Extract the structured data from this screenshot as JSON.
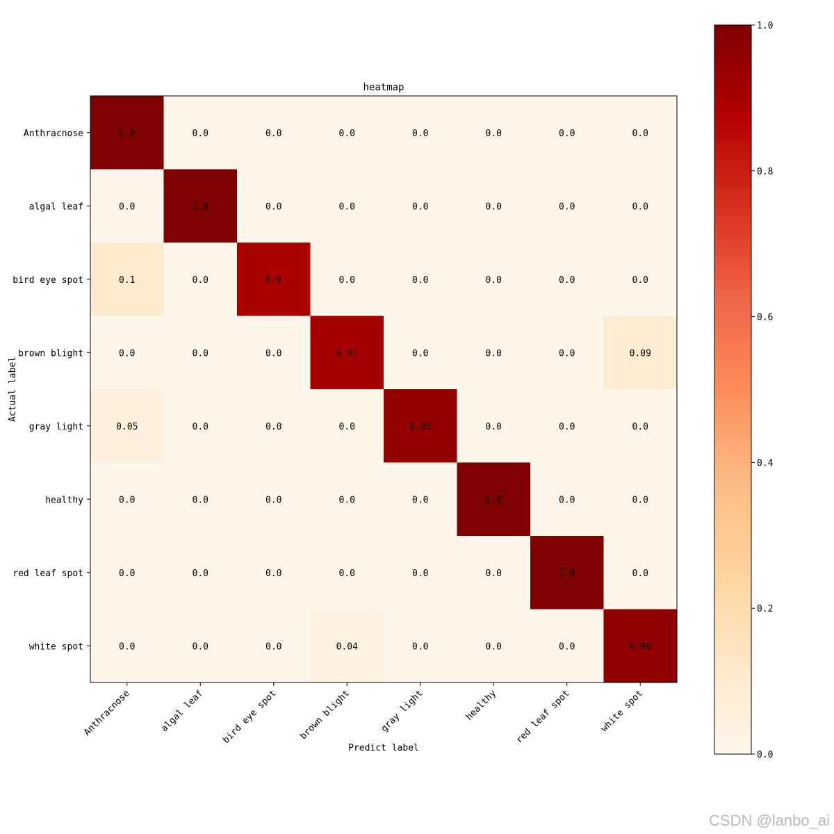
{
  "chart_data": {
    "type": "heatmap",
    "title": "heatmap",
    "xlabel": "Predict label",
    "ylabel": "Actual label",
    "categories": [
      "Anthracnose",
      "algal leaf",
      "bird eye spot",
      "brown blight",
      "gray light",
      "healthy",
      "red leaf spot",
      "white spot"
    ],
    "values": [
      [
        1.0,
        0.0,
        0.0,
        0.0,
        0.0,
        0.0,
        0.0,
        0.0
      ],
      [
        0.0,
        1.0,
        0.0,
        0.0,
        0.0,
        0.0,
        0.0,
        0.0
      ],
      [
        0.1,
        0.0,
        0.9,
        0.0,
        0.0,
        0.0,
        0.0,
        0.0
      ],
      [
        0.0,
        0.0,
        0.0,
        0.91,
        0.0,
        0.0,
        0.0,
        0.09
      ],
      [
        0.05,
        0.0,
        0.0,
        0.0,
        0.95,
        0.0,
        0.0,
        0.0
      ],
      [
        0.0,
        0.0,
        0.0,
        0.0,
        0.0,
        1.0,
        0.0,
        0.0
      ],
      [
        0.0,
        0.0,
        0.0,
        0.0,
        0.0,
        0.0,
        1.0,
        0.0
      ],
      [
        0.0,
        0.0,
        0.0,
        0.04,
        0.0,
        0.0,
        0.0,
        0.96
      ]
    ],
    "labels": [
      [
        "1.0",
        "0.0",
        "0.0",
        "0.0",
        "0.0",
        "0.0",
        "0.0",
        "0.0"
      ],
      [
        "0.0",
        "1.0",
        "0.0",
        "0.0",
        "0.0",
        "0.0",
        "0.0",
        "0.0"
      ],
      [
        "0.1",
        "0.0",
        "0.9",
        "0.0",
        "0.0",
        "0.0",
        "0.0",
        "0.0"
      ],
      [
        "0.0",
        "0.0",
        "0.0",
        "0.91",
        "0.0",
        "0.0",
        "0.0",
        "0.09"
      ],
      [
        "0.05",
        "0.0",
        "0.0",
        "0.0",
        "0.95",
        "0.0",
        "0.0",
        "0.0"
      ],
      [
        "0.0",
        "0.0",
        "0.0",
        "0.0",
        "0.0",
        "1.0",
        "0.0",
        "0.0"
      ],
      [
        "0.0",
        "0.0",
        "0.0",
        "0.0",
        "0.0",
        "0.0",
        "1.0",
        "0.0"
      ],
      [
        "0.0",
        "0.0",
        "0.0",
        "0.04",
        "0.0",
        "0.0",
        "0.0",
        "0.96"
      ]
    ],
    "colorbar": {
      "colormap": "OrRd",
      "range": [
        0.0,
        1.0
      ],
      "ticks": [
        0.0,
        0.2,
        0.4,
        0.6,
        0.8,
        1.0
      ],
      "tick_labels": [
        "0.0",
        "0.2",
        "0.4",
        "0.6",
        "0.8",
        "1.0"
      ],
      "stops": [
        "#fff7ec",
        "#fee8c8",
        "#fdd49e",
        "#fdbb84",
        "#fc8d59",
        "#ef6548",
        "#d7301f",
        "#b30000",
        "#7f0000"
      ]
    }
  },
  "watermark": "CSDN @lanbo_ai"
}
